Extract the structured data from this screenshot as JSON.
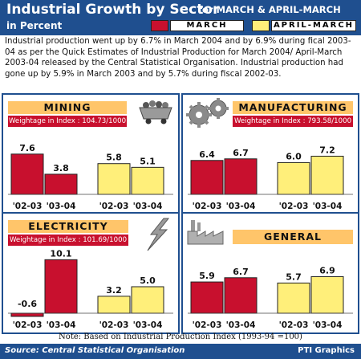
{
  "header": {
    "title": "Industrial Growth by Sector",
    "period": "for MARCH & APRIL-MARCH",
    "unit": "in Percent"
  },
  "legend": {
    "march": "MARCH",
    "april_march": "APRIL-MARCH"
  },
  "colors": {
    "brand_blue": "#1f4f8f",
    "march_red": "#c8102e",
    "april_march_yellow": "#ffef7a",
    "panel_title_bg": "#ffc56a"
  },
  "intro_text": "Industrial production went up by 6.7% in March 2004 and by 6.9% during fical 2003-04 as per the Quick Estimates of Industrial Production for March 2004/ April-March 2003-04 released by the Central Statistical Organisation. Industrial production had gone up by 5.9% in March 2003 and by 5.7% during fiscal 2002-03.",
  "note": "Note: Based on Industrial Production Index (1993-94 =100)",
  "footer": {
    "source": "Source: Central Statistical Organisation",
    "credit": "PTI Graphics"
  },
  "icons": {
    "mining": "mine-cart-icon",
    "manufacturing": "gears-icon",
    "electricity": "lightning-bolt-icon",
    "general": "factory-icon"
  },
  "chart_data": [
    {
      "type": "bar",
      "title": "MINING",
      "subtitle": "Weightage in Index : 104.73/1000",
      "categories": [
        "'02-03",
        "'03-04"
      ],
      "series": [
        {
          "name": "MARCH",
          "values": [
            7.6,
            3.8
          ]
        },
        {
          "name": "APRIL-MARCH",
          "values": [
            5.8,
            5.1
          ]
        }
      ]
    },
    {
      "type": "bar",
      "title": "MANUFACTURING",
      "subtitle": "Weightage in Index : 793.58/1000",
      "categories": [
        "'02-03",
        "'03-04"
      ],
      "series": [
        {
          "name": "MARCH",
          "values": [
            6.4,
            6.7
          ]
        },
        {
          "name": "APRIL-MARCH",
          "values": [
            6.0,
            7.2
          ]
        }
      ]
    },
    {
      "type": "bar",
      "title": "ELECTRICITY",
      "subtitle": "Weightage in Index : 101.69/1000",
      "categories": [
        "'02-03",
        "'03-04"
      ],
      "series": [
        {
          "name": "MARCH",
          "values": [
            -0.6,
            10.1
          ]
        },
        {
          "name": "APRIL-MARCH",
          "values": [
            3.2,
            5.0
          ]
        }
      ]
    },
    {
      "type": "bar",
      "title": "GENERAL",
      "subtitle": "",
      "categories": [
        "'02-03",
        "'03-04"
      ],
      "series": [
        {
          "name": "MARCH",
          "values": [
            5.9,
            6.7
          ]
        },
        {
          "name": "APRIL-MARCH",
          "values": [
            5.7,
            6.9
          ]
        }
      ]
    }
  ]
}
